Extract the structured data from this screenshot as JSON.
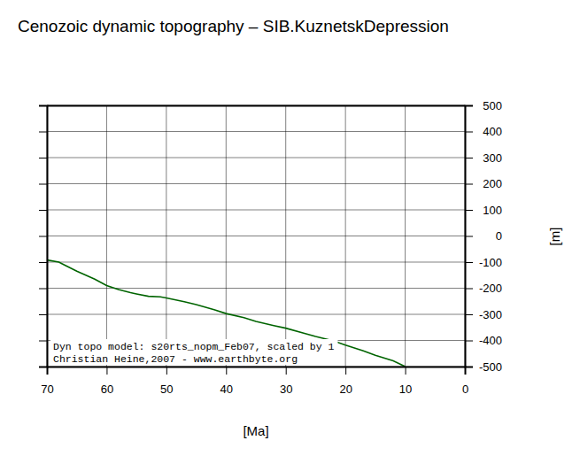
{
  "chart_data": {
    "type": "line",
    "title": "Cenozoic dynamic topography – SIB.KuznetskDepression",
    "x_label": "[Ma]",
    "y_label": "[m]",
    "x": [
      70,
      68,
      67,
      65,
      62,
      60,
      58,
      56,
      55,
      53,
      51,
      50,
      47,
      45,
      42,
      40,
      37,
      35,
      32,
      30,
      27,
      25,
      22,
      20,
      17,
      15,
      12,
      10
    ],
    "values": [
      -92,
      -100,
      -112,
      -135,
      -165,
      -190,
      -205,
      -217,
      -222,
      -231,
      -233,
      -237,
      -252,
      -263,
      -282,
      -297,
      -313,
      -327,
      -343,
      -353,
      -372,
      -385,
      -402,
      -418,
      -440,
      -457,
      -478,
      -500
    ],
    "color": "#006400",
    "xlim": [
      70,
      0
    ],
    "ylim": [
      -500,
      500
    ],
    "xticks": [
      70,
      60,
      50,
      40,
      30,
      20,
      10,
      0
    ],
    "yticks": [
      -500,
      -400,
      -300,
      -200,
      -100,
      0,
      100,
      200,
      300,
      400,
      500
    ],
    "grid": true,
    "annotations": [
      "Dyn topo model: s20rts_nopm_Feb07, scaled by 1",
      "Christian Heine,2007 - www.earthbyte.org"
    ]
  }
}
